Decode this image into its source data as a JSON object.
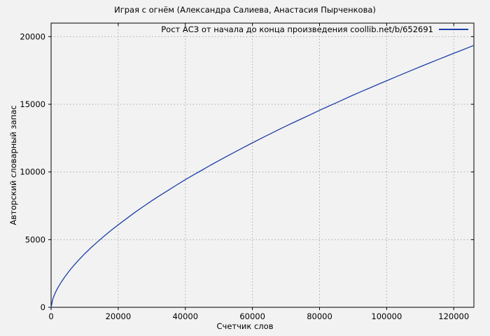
{
  "colors": {
    "background": "#f2f2f2",
    "line": "#1c3fa8",
    "grid": "#aaaaaa",
    "border": "#000000",
    "text": "#000000"
  },
  "chart_data": {
    "type": "line",
    "title": "Играя с огнём (Александра Салиева, Анастасия Пырченкова)",
    "xlabel": "Счетчик слов",
    "ylabel": "Авторский словарный запас",
    "xlim": [
      0,
      126000
    ],
    "ylim": [
      0,
      21000
    ],
    "x_ticks": [
      0,
      20000,
      40000,
      60000,
      80000,
      100000,
      120000
    ],
    "y_ticks": [
      0,
      5000,
      10000,
      15000,
      20000
    ],
    "grid": true,
    "grid_style": "dotted",
    "legend_position": "top-right",
    "series": [
      {
        "name": "Рост АСЗ от начала до конца произведения coollib.net/b/652691",
        "color": "#1c3fa8",
        "points": [
          [
            0,
            0
          ],
          [
            500,
            600
          ],
          [
            1000,
            930
          ],
          [
            1500,
            1200
          ],
          [
            2000,
            1440
          ],
          [
            3000,
            1850
          ],
          [
            4000,
            2220
          ],
          [
            5000,
            2555
          ],
          [
            6000,
            2870
          ],
          [
            7000,
            3160
          ],
          [
            8000,
            3430
          ],
          [
            10000,
            3950
          ],
          [
            12000,
            4430
          ],
          [
            14000,
            4875
          ],
          [
            16000,
            5300
          ],
          [
            18000,
            5710
          ],
          [
            20000,
            6095
          ],
          [
            22500,
            6560
          ],
          [
            25000,
            7020
          ],
          [
            27500,
            7450
          ],
          [
            30000,
            7870
          ],
          [
            32500,
            8270
          ],
          [
            35000,
            8660
          ],
          [
            37500,
            9050
          ],
          [
            40000,
            9430
          ],
          [
            42500,
            9790
          ],
          [
            45000,
            10140
          ],
          [
            47500,
            10500
          ],
          [
            50000,
            10840
          ],
          [
            52500,
            11180
          ],
          [
            55000,
            11505
          ],
          [
            57500,
            11830
          ],
          [
            60000,
            12155
          ],
          [
            62500,
            12470
          ],
          [
            65000,
            12780
          ],
          [
            67500,
            13090
          ],
          [
            70000,
            13390
          ],
          [
            72500,
            13680
          ],
          [
            75000,
            13970
          ],
          [
            77500,
            14260
          ],
          [
            80000,
            14555
          ],
          [
            82500,
            14840
          ],
          [
            85000,
            15115
          ],
          [
            87500,
            15400
          ],
          [
            90000,
            15675
          ],
          [
            92500,
            15945
          ],
          [
            95000,
            16210
          ],
          [
            97500,
            16480
          ],
          [
            100000,
            16740
          ],
          [
            102500,
            17000
          ],
          [
            105000,
            17260
          ],
          [
            107500,
            17520
          ],
          [
            110000,
            17775
          ],
          [
            112500,
            18025
          ],
          [
            115000,
            18275
          ],
          [
            117500,
            18525
          ],
          [
            120000,
            18770
          ],
          [
            122500,
            19010
          ],
          [
            126000,
            19355
          ]
        ]
      }
    ]
  }
}
